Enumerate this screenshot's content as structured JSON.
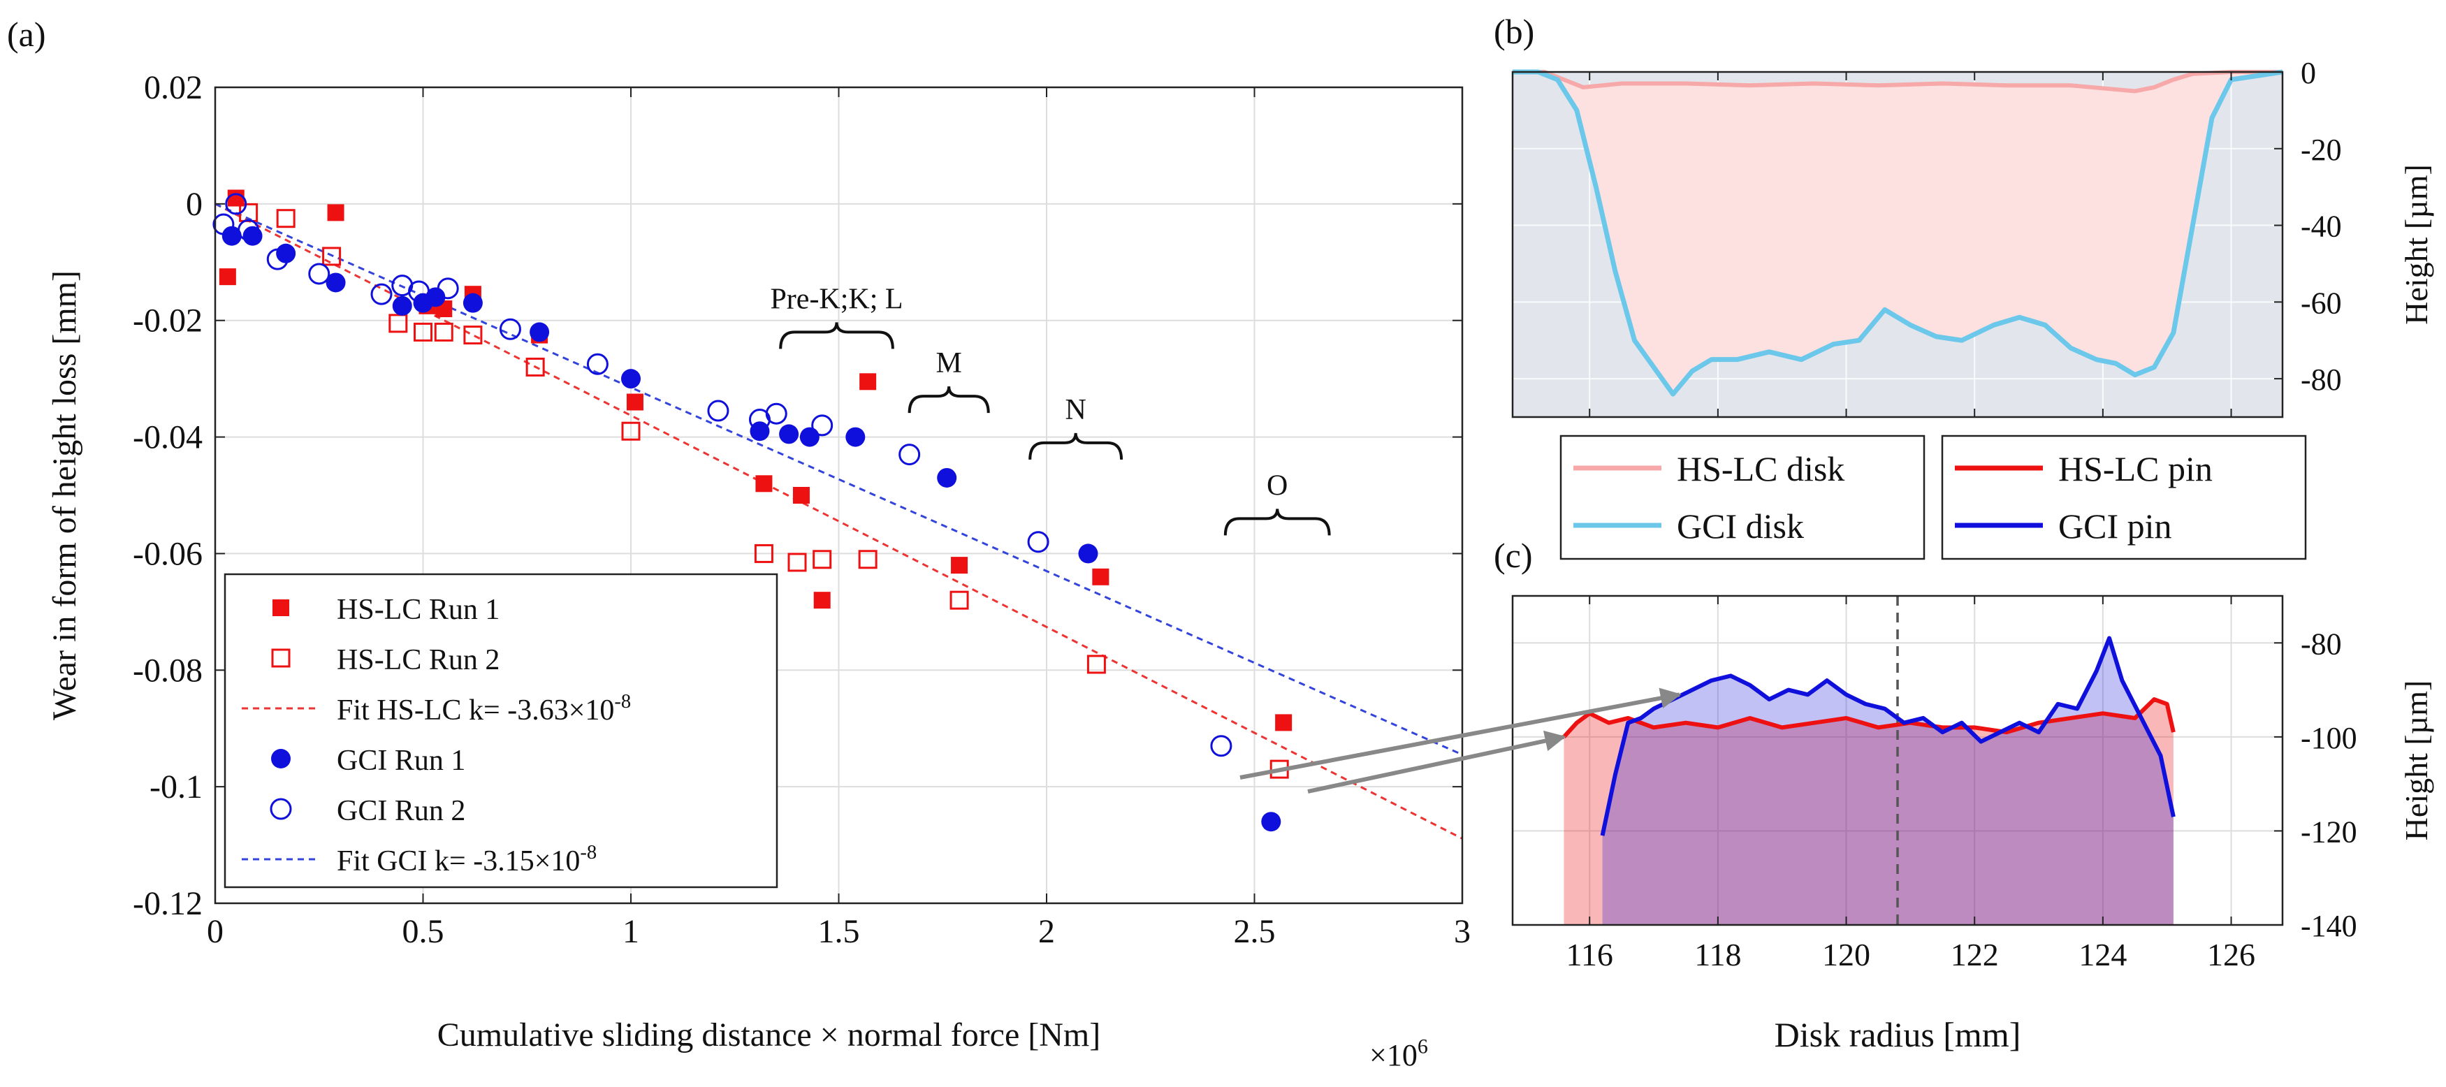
{
  "colors": {
    "hslc": "#ee1111",
    "gci": "#1010dd",
    "fit_hslc": "#ee3333",
    "fit_gci": "#3344dd",
    "hslc_disk": "#f7a8a8",
    "gci_disk": "#6cc8ea",
    "grid": "#dddddd",
    "plot_bg_b": "#e2e6ec",
    "pin_blue": "#1010dd",
    "pin_red": "#ee1111",
    "arrow": "#888888"
  },
  "chart_data": [
    {
      "panel_label": "(a)",
      "type": "scatter",
      "xlabel": "Cumulative sliding distance × normal force [Nm]",
      "ylabel": "Wear in form of height loss [mm]",
      "x_exponent": "×10",
      "x_exponent_power": "6",
      "xlim": [
        0,
        3
      ],
      "ylim": [
        -0.12,
        0.02
      ],
      "xticks": [
        0,
        0.5,
        1,
        1.5,
        2,
        2.5,
        3
      ],
      "xtick_labels": [
        "0",
        "0.5",
        "1",
        "1.5",
        "2",
        "2.5",
        "3"
      ],
      "yticks": [
        0.02,
        0,
        -0.02,
        -0.04,
        -0.06,
        -0.08,
        -0.1,
        -0.12
      ],
      "ytick_labels": [
        "0.02",
        "0",
        "-0.02",
        "-0.04",
        "-0.06",
        "-0.08",
        "-0.1",
        "-0.12"
      ],
      "grid": true,
      "series": [
        {
          "name": "HS-LC Run 1",
          "marker": "square-filled",
          "color_key": "hslc",
          "points": [
            [
              0.03,
              -0.0125
            ],
            [
              0.05,
              0.001
            ],
            [
              0.29,
              -0.0015
            ],
            [
              0.51,
              -0.0175
            ],
            [
              0.55,
              -0.018
            ],
            [
              0.62,
              -0.0155
            ],
            [
              0.78,
              -0.0225
            ],
            [
              1.01,
              -0.034
            ],
            [
              1.32,
              -0.048
            ],
            [
              1.41,
              -0.05
            ],
            [
              1.46,
              -0.068
            ],
            [
              1.57,
              -0.0305
            ],
            [
              1.79,
              -0.062
            ],
            [
              2.13,
              -0.064
            ],
            [
              2.57,
              -0.089
            ]
          ]
        },
        {
          "name": "HS-LC Run 2",
          "marker": "square-open",
          "color_key": "hslc",
          "points": [
            [
              0.08,
              -0.0015
            ],
            [
              0.17,
              -0.0025
            ],
            [
              0.28,
              -0.009
            ],
            [
              0.44,
              -0.0205
            ],
            [
              0.5,
              -0.022
            ],
            [
              0.55,
              -0.022
            ],
            [
              0.62,
              -0.0225
            ],
            [
              0.77,
              -0.028
            ],
            [
              1.0,
              -0.039
            ],
            [
              1.32,
              -0.06
            ],
            [
              1.4,
              -0.0615
            ],
            [
              1.46,
              -0.061
            ],
            [
              1.57,
              -0.061
            ],
            [
              1.79,
              -0.068
            ],
            [
              2.12,
              -0.079
            ],
            [
              2.56,
              -0.097
            ]
          ]
        },
        {
          "name": "Fit HS-LC k= -3.63×10",
          "legend_power": "-8",
          "marker": "dashed-line",
          "color_key": "fit_hslc",
          "slope_per_1e6": -0.0363,
          "x_range": [
            0,
            3
          ]
        },
        {
          "name": "GCI Run 1",
          "marker": "circle-filled",
          "color_key": "gci",
          "points": [
            [
              0.04,
              -0.0055
            ],
            [
              0.09,
              -0.0055
            ],
            [
              0.17,
              -0.0085
            ],
            [
              0.29,
              -0.0135
            ],
            [
              0.45,
              -0.0175
            ],
            [
              0.5,
              -0.017
            ],
            [
              0.53,
              -0.016
            ],
            [
              0.62,
              -0.017
            ],
            [
              0.78,
              -0.022
            ],
            [
              1.0,
              -0.03
            ],
            [
              1.31,
              -0.039
            ],
            [
              1.38,
              -0.0395
            ],
            [
              1.43,
              -0.04
            ],
            [
              1.54,
              -0.04
            ],
            [
              1.76,
              -0.047
            ],
            [
              2.1,
              -0.06
            ],
            [
              2.54,
              -0.106
            ]
          ]
        },
        {
          "name": "GCI Run 2",
          "marker": "circle-open",
          "color_key": "gci",
          "points": [
            [
              0.02,
              -0.0035
            ],
            [
              0.05,
              0.0
            ],
            [
              0.08,
              -0.0045
            ],
            [
              0.15,
              -0.0095
            ],
            [
              0.25,
              -0.012
            ],
            [
              0.4,
              -0.0155
            ],
            [
              0.45,
              -0.014
            ],
            [
              0.49,
              -0.015
            ],
            [
              0.56,
              -0.0145
            ],
            [
              0.71,
              -0.0215
            ],
            [
              0.92,
              -0.0275
            ],
            [
              1.21,
              -0.0355
            ],
            [
              1.31,
              -0.037
            ],
            [
              1.35,
              -0.036
            ],
            [
              1.46,
              -0.038
            ],
            [
              1.67,
              -0.043
            ],
            [
              1.98,
              -0.058
            ],
            [
              2.42,
              -0.093
            ]
          ]
        },
        {
          "name": "Fit GCI k= -3.15×10",
          "legend_power": "-8",
          "marker": "dashed-line",
          "color_key": "fit_gci",
          "slope_per_1e6": -0.0315,
          "x_range": [
            0,
            3
          ]
        }
      ],
      "annotations": [
        {
          "text": "Pre-K;K; L",
          "x_from": 1.36,
          "x_to": 1.63,
          "y": -0.022
        },
        {
          "text": "M",
          "x_from": 1.67,
          "x_to": 1.86,
          "y": -0.033
        },
        {
          "text": "N",
          "x_from": 1.96,
          "x_to": 2.18,
          "y": -0.041
        },
        {
          "text": "O",
          "x_from": 2.43,
          "x_to": 2.68,
          "y": -0.054
        }
      ]
    },
    {
      "panel_label": "(b)",
      "type": "area",
      "ylabel": "Height [µm]",
      "xlim": [
        114.8,
        126.8
      ],
      "ylim": [
        -90,
        0
      ],
      "yticks": [
        0,
        -20,
        -40,
        -60,
        -80
      ],
      "ytick_labels": [
        "0",
        "-20",
        "-40",
        "-60",
        "-80"
      ],
      "grid": true,
      "series": [
        {
          "name": "HS-LC disk",
          "color_key": "hslc_disk",
          "x": [
            114.8,
            115.3,
            115.6,
            115.9,
            116.5,
            117.5,
            118.5,
            119.5,
            120.5,
            121.5,
            122.5,
            123.5,
            124.5,
            124.8,
            125.1,
            125.4,
            126.0,
            126.8
          ],
          "y": [
            0,
            0,
            -2,
            -4,
            -3,
            -3,
            -3.5,
            -3,
            -3.5,
            -3,
            -3.5,
            -3.5,
            -5,
            -4,
            -2,
            -0.5,
            0,
            0
          ]
        },
        {
          "name": "GCI disk",
          "color_key": "gci_disk",
          "x": [
            114.8,
            115.2,
            115.5,
            115.8,
            116.1,
            116.4,
            116.7,
            117.0,
            117.3,
            117.6,
            117.9,
            118.3,
            118.8,
            119.3,
            119.8,
            120.2,
            120.6,
            121.0,
            121.4,
            121.8,
            122.3,
            122.7,
            123.1,
            123.5,
            123.9,
            124.2,
            124.5,
            124.8,
            125.1,
            125.4,
            125.7,
            126.0,
            126.8
          ],
          "y": [
            0,
            0,
            -2,
            -10,
            -30,
            -52,
            -70,
            -77,
            -84,
            -78,
            -75,
            -75,
            -73,
            -75,
            -71,
            -70,
            -62,
            -66,
            -69,
            -70,
            -66,
            -64,
            -66,
            -72,
            -75,
            -76,
            -79,
            -77,
            -68,
            -40,
            -12,
            -2,
            0
          ]
        }
      ],
      "legend": [
        "HS-LC disk",
        "GCI disk"
      ]
    },
    {
      "panel_label": "(c)",
      "type": "area",
      "xlabel": "Disk radius [mm]",
      "ylabel": "Height [µm]",
      "xlim": [
        114.8,
        126.8
      ],
      "ylim": [
        -140,
        -70
      ],
      "xticks": [
        116,
        118,
        120,
        122,
        124,
        126
      ],
      "xtick_labels": [
        "116",
        "118",
        "120",
        "122",
        "124",
        "126"
      ],
      "yticks": [
        -80,
        -100,
        -120,
        -140
      ],
      "ytick_labels": [
        "-80",
        "-100",
        "-120",
        "-140"
      ],
      "grid": true,
      "vline_x": 120.8,
      "series": [
        {
          "name": "HS-LC pin",
          "color_key": "pin_red",
          "x": [
            115.6,
            115.8,
            116.0,
            116.3,
            116.6,
            117.0,
            117.5,
            118.0,
            118.5,
            119.0,
            119.5,
            120.0,
            120.5,
            121.0,
            121.5,
            122.0,
            122.5,
            123.0,
            123.5,
            124.0,
            124.5,
            124.8,
            125.0,
            125.1
          ],
          "y": [
            -100,
            -97,
            -95,
            -97,
            -96,
            -98,
            -97,
            -98,
            -96,
            -98,
            -97,
            -96,
            -98,
            -97,
            -98,
            -98,
            -99,
            -97,
            -96,
            -95,
            -96,
            -92,
            -93,
            -99
          ]
        },
        {
          "name": "GCI pin",
          "color_key": "pin_blue",
          "x": [
            116.2,
            116.4,
            116.6,
            116.8,
            117.0,
            117.3,
            117.6,
            117.9,
            118.2,
            118.5,
            118.8,
            119.1,
            119.4,
            119.7,
            120.0,
            120.3,
            120.6,
            120.9,
            121.2,
            121.5,
            121.8,
            122.1,
            122.4,
            122.7,
            123.0,
            123.3,
            123.6,
            123.9,
            124.1,
            124.3,
            124.6,
            124.9,
            125.1
          ],
          "y": [
            -121,
            -108,
            -97,
            -96,
            -94,
            -92,
            -90,
            -88,
            -87,
            -89,
            -92,
            -90,
            -91,
            -88,
            -91,
            -93,
            -94,
            -97,
            -96,
            -99,
            -97,
            -101,
            -99,
            -97,
            -99,
            -93,
            -94,
            -86,
            -79,
            -88,
            -96,
            -104,
            -117
          ]
        }
      ],
      "legend": [
        "HS-LC pin",
        "GCI pin"
      ]
    }
  ]
}
